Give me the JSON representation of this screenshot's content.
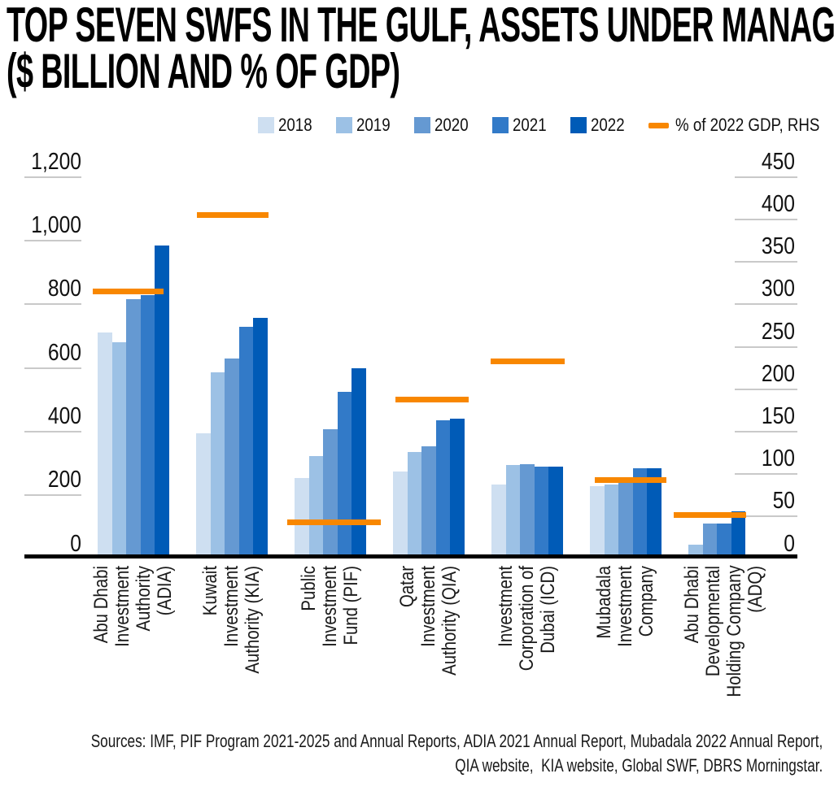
{
  "title": {
    "line1": "TOP SEVEN SWFS IN THE GULF, ASSETS UNDER MANAGEMENT",
    "line2": "($ BILLION AND % OF GDP)"
  },
  "legend": {
    "items": [
      {
        "label": "2018",
        "color": "#CEDFF1"
      },
      {
        "label": "2019",
        "color": "#9CC1E5"
      },
      {
        "label": "2020",
        "color": "#6599D2"
      },
      {
        "label": "2021",
        "color": "#327AC8"
      },
      {
        "label": "2022",
        "color": "#005BB7"
      }
    ],
    "line_item": {
      "label": "% of 2022 GDP, RHS",
      "color": "#F88700"
    }
  },
  "chart_data": {
    "type": "bar",
    "title": "TOP SEVEN SWFS IN THE GULF, ASSETS UNDER MANAGEMENT ($ BILLION AND % OF GDP)",
    "categories": [
      "Abu Dhabi Investment Authority (ADIA)",
      "Kuwait Investment Authority (KIA)",
      "Public Investment Fund (PIF)",
      "Qatar Investment Authority (QIA)",
      "Investment Corporation of Dubai (ICD)",
      "Mubadala Investment Company",
      "Abu Dhabi Developmental Holding Company (ADQ)"
    ],
    "category_label_lines": [
      [
        "Abu Dhabi",
        "Investment",
        "Authority",
        "(ADIA)"
      ],
      [
        "Kuwait",
        "Investment",
        "Authority (KIA)"
      ],
      [
        "Public",
        "Investment",
        "Fund (PIF)"
      ],
      [
        "Qatar",
        "Investment",
        "Authority (QIA)"
      ],
      [
        "Investment",
        "Corporation of",
        "Dubai (ICD)"
      ],
      [
        "Mubadala",
        "Investment",
        "Company"
      ],
      [
        "Abu Dhabi",
        "Developmental",
        "Holding Company",
        "(ADQ)"
      ]
    ],
    "series": [
      {
        "name": "2018",
        "color": "#CEDFF1",
        "values": [
          712,
          395,
          255,
          275,
          233,
          228,
          null
        ]
      },
      {
        "name": "2019",
        "color": "#9CC1E5",
        "values": [
          680,
          585,
          322,
          335,
          296,
          233,
          45
        ]
      },
      {
        "name": "2020",
        "color": "#6599D2",
        "values": [
          815,
          630,
          408,
          355,
          298,
          238,
          112
        ]
      },
      {
        "name": "2021",
        "color": "#327AC8",
        "values": [
          830,
          730,
          525,
          435,
          291,
          284,
          110
        ]
      },
      {
        "name": "2022",
        "color": "#005BB7",
        "values": [
          985,
          757,
          600,
          440,
          290,
          284,
          150
        ]
      }
    ],
    "line_series": {
      "name": "% of 2022 GDP, RHS",
      "axis": "right",
      "color": "#F88700",
      "values": [
        315,
        405,
        43,
        188,
        233,
        93,
        52
      ]
    },
    "left_axis": {
      "min": 0,
      "max": 1200,
      "step": 200,
      "tick_labels": [
        "0",
        "200",
        "400",
        "600",
        "800",
        "1,000",
        "1,200"
      ]
    },
    "right_axis": {
      "min": 0,
      "max": 450,
      "step": 50,
      "tick_labels": [
        "0",
        "50",
        "100",
        "150",
        "200",
        "250",
        "300",
        "350",
        "400",
        "450"
      ]
    },
    "grid": "tick-stubs-only",
    "legend_position": "top"
  },
  "source": {
    "line1": "Sources: IMF, PIF Program 2021-2025 and Annual Reports, ADIA 2021 Annual Report, Mubadala 2022 Annual Report,",
    "line2": "QIA website,  KIA website, Global SWF, DBRS Morningstar."
  }
}
